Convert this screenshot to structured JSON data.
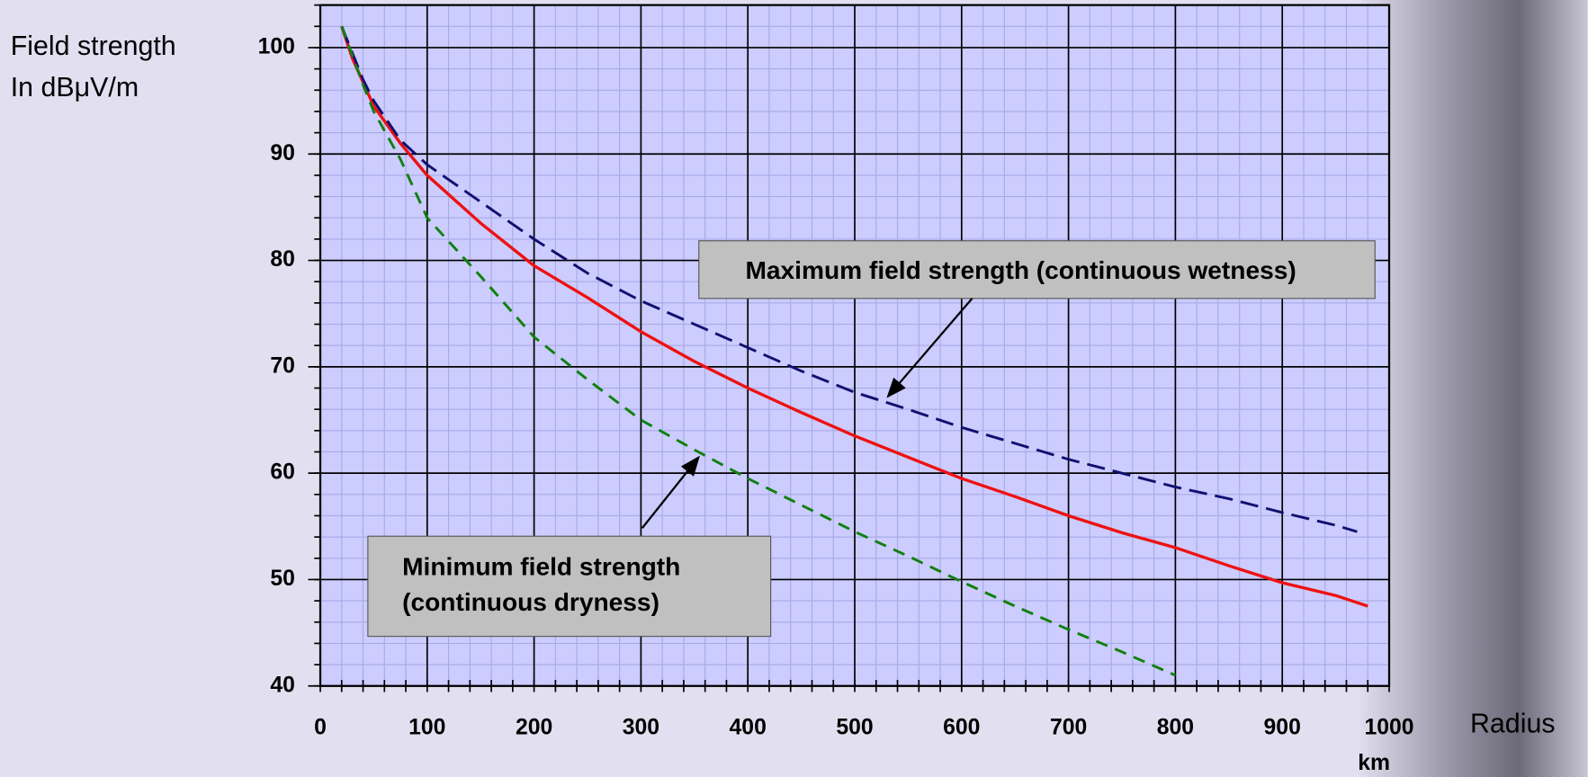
{
  "chart_data": {
    "type": "line",
    "y_label": [
      "Field strength",
      "In dBμV/m"
    ],
    "x_label": "Radius",
    "x_unit": "km",
    "xlim": [
      0,
      1000
    ],
    "ylim": [
      40,
      104
    ],
    "xticks": [
      0,
      100,
      200,
      300,
      400,
      500,
      600,
      700,
      800,
      900,
      1000
    ],
    "yticks": [
      40,
      50,
      60,
      70,
      80,
      90,
      100
    ],
    "grid": true,
    "minor_grid": true,
    "series": [
      {
        "color": "#ee1111",
        "style": "solid",
        "x": [
          20,
          30,
          50,
          75,
          100,
          150,
          200,
          250,
          300,
          350,
          400,
          450,
          500,
          550,
          600,
          650,
          700,
          750,
          800,
          850,
          900,
          950,
          980
        ],
        "values": [
          102,
          99,
          94.5,
          91,
          88,
          83.5,
          79.5,
          76.5,
          73.3,
          70.5,
          68,
          65.7,
          63.5,
          61.5,
          59.5,
          57.8,
          56,
          54.4,
          53,
          51.3,
          49.7,
          48.5,
          47.5
        ]
      },
      {
        "color": "#101070",
        "style": "dashed",
        "x": [
          20,
          40,
          50,
          75,
          100,
          150,
          200,
          250,
          300,
          350,
          400,
          450,
          500,
          550,
          600,
          650,
          700,
          750,
          800,
          850,
          900,
          950,
          970
        ],
        "values": [
          102,
          97,
          95,
          91.3,
          89,
          85.5,
          82,
          78.8,
          76.2,
          74,
          71.8,
          69.6,
          67.6,
          66,
          64.3,
          62.8,
          61.3,
          60,
          58.7,
          57.6,
          56.3,
          55.1,
          54.5
        ]
      },
      {
        "color": "#108010",
        "style": "dashed",
        "x": [
          20,
          40,
          50,
          75,
          100,
          150,
          200,
          250,
          300,
          350,
          400,
          450,
          500,
          550,
          600,
          650,
          700,
          750,
          800
        ],
        "values": [
          102,
          96.5,
          94,
          89.5,
          84,
          78.5,
          72.8,
          68.8,
          65,
          62.2,
          59.5,
          57,
          54.5,
          52.2,
          49.8,
          47.5,
          45.3,
          43.2,
          41
        ]
      }
    ],
    "annotations": [
      {
        "text": [
          "Maximum field strength (continuous wetness)"
        ],
        "xy": [
          531,
          67.2
        ]
      },
      {
        "text": [
          "Minimum field strength",
          "(continuous dryness)"
        ],
        "xy": [
          354,
          61.5
        ]
      }
    ]
  }
}
